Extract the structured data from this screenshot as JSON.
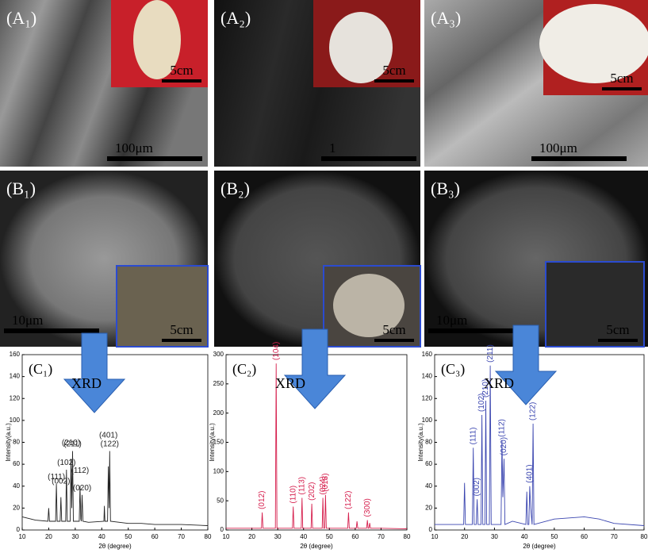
{
  "panels": [
    {
      "label": "(A₁)",
      "inset_scale": "5cm",
      "scale_bar": "100μm"
    },
    {
      "label": "(A₂)",
      "inset_scale": "5cm",
      "scale_bar": "1"
    },
    {
      "label": "(A₃)",
      "inset_scale": "5cm",
      "scale_bar": "100μm"
    },
    {
      "label": "(B₁)",
      "inset_scale": "5cm",
      "scale_bar": "10μm"
    },
    {
      "label": "(B₂)",
      "inset_scale": "5cm"
    },
    {
      "label": "(B₃)",
      "inset_scale": "5cm",
      "scale_bar": "10μm"
    }
  ],
  "chart_data": [
    {
      "type": "line",
      "title": "(C₁)",
      "annotation": "XRD",
      "xlabel": "2θ (degree)",
      "ylabel": "Intensity(a.u.)",
      "color": "#222222",
      "rotated_labels": false,
      "xlim": [
        10,
        80
      ],
      "xticks": [
        10,
        20,
        30,
        40,
        50,
        60,
        70,
        80
      ],
      "ylim": [
        0,
        160
      ],
      "yticks": [
        0,
        20,
        40,
        60,
        80,
        100,
        120,
        140,
        160
      ],
      "x": [
        10,
        15,
        19.7,
        20,
        20.3,
        22.6,
        22.9,
        23.2,
        24.3,
        24.6,
        24.9,
        26.4,
        26.7,
        27.0,
        28.1,
        28.4,
        28.7,
        29.0,
        29.3,
        31.5,
        31.8,
        32.1,
        32.3,
        32.6,
        32.9,
        35,
        40.8,
        41,
        41.2,
        42.2,
        42.5,
        42.8,
        43.0,
        43.3,
        50,
        55,
        60,
        70,
        80
      ],
      "values": [
        12,
        9,
        8,
        20,
        8,
        8,
        42,
        8,
        8,
        30,
        8,
        8,
        55,
        8,
        8,
        65,
        20,
        72,
        8,
        8,
        40,
        10,
        8,
        32,
        8,
        7,
        8,
        22,
        8,
        8,
        58,
        20,
        72,
        8,
        6,
        6,
        5,
        5,
        4
      ],
      "peak_labels": [
        {
          "text": "(111)",
          "x": 22.9
        },
        {
          "text": "(002)",
          "x": 24.6
        },
        {
          "text": "(102)",
          "x": 26.7
        },
        {
          "text": "(210)",
          "x": 28.4
        },
        {
          "text": "(211)",
          "x": 29.0
        },
        {
          "text": "(112)",
          "x": 31.8
        },
        {
          "text": "(020)",
          "x": 32.6
        },
        {
          "text": "(401)",
          "x": 42.5
        },
        {
          "text": "(122)",
          "x": 43.0
        }
      ]
    },
    {
      "type": "line",
      "title": "(C₂)",
      "annotation": "XRD",
      "xlabel": "2θ (degree)",
      "ylabel": "Intensity(a.u.)",
      "color": "#d6204e",
      "rotated_labels": true,
      "xlim": [
        10,
        80
      ],
      "xticks": [
        10,
        20,
        30,
        40,
        50,
        60,
        70,
        80
      ],
      "ylim": [
        0,
        300
      ],
      "yticks": [
        0,
        50,
        100,
        150,
        200,
        250,
        300
      ],
      "x": [
        10,
        20,
        23.7,
        24,
        24.3,
        29.1,
        29.4,
        29.7,
        35.7,
        36,
        36.3,
        39.1,
        39.4,
        39.7,
        42.9,
        43.2,
        43.5,
        47.2,
        47.5,
        47.8,
        48.2,
        48.5,
        48.8,
        57.1,
        57.4,
        57.7,
        60.4,
        60.7,
        61,
        64.4,
        64.7,
        65,
        65.3,
        65.6,
        65.9,
        70,
        80
      ],
      "values": [
        3,
        3,
        3,
        30,
        3,
        3,
        285,
        3,
        3,
        40,
        3,
        3,
        55,
        3,
        3,
        45,
        3,
        3,
        55,
        3,
        3,
        60,
        3,
        3,
        30,
        3,
        3,
        15,
        3,
        3,
        17,
        3,
        3,
        12,
        3,
        3,
        2
      ],
      "peak_labels": [
        {
          "text": "(012)",
          "x": 24
        },
        {
          "text": "(104)",
          "x": 29.4
        },
        {
          "text": "(110)",
          "x": 36
        },
        {
          "text": "(113)",
          "x": 39.4
        },
        {
          "text": "(202)",
          "x": 43.2
        },
        {
          "text": "(024)",
          "x": 47.5
        },
        {
          "text": "(018)",
          "x": 48.5
        },
        {
          "text": "(122)",
          "x": 57.4
        },
        {
          "text": "(300)",
          "x": 64.7
        }
      ]
    },
    {
      "type": "line",
      "title": "(C₃)",
      "annotation": "XRD",
      "xlabel": "2θ (degree)",
      "ylabel": "Intensity(a.u.)",
      "color": "#3b46b0",
      "rotated_labels": true,
      "xlim": [
        10,
        80
      ],
      "xticks": [
        10,
        20,
        30,
        40,
        50,
        60,
        70,
        80
      ],
      "ylim": [
        0,
        160
      ],
      "yticks": [
        0,
        20,
        40,
        60,
        80,
        100,
        120,
        140,
        160
      ],
      "x": [
        10,
        19.7,
        20,
        20.3,
        22.6,
        22.9,
        23.2,
        23.9,
        24.2,
        24.5,
        25.5,
        25.8,
        26.1,
        26.8,
        27.1,
        27.4,
        28.3,
        28.6,
        28.9,
        32.2,
        32.5,
        32.8,
        33.2,
        33.5,
        36,
        40.5,
        40.8,
        41.1,
        41.5,
        41.8,
        42.1,
        42.6,
        42.9,
        43.2,
        50,
        60,
        65,
        70,
        80
      ],
      "values": [
        5,
        5,
        43,
        5,
        5,
        75,
        5,
        5,
        28,
        5,
        5,
        105,
        5,
        5,
        118,
        5,
        5,
        150,
        5,
        5,
        82,
        30,
        65,
        5,
        8,
        5,
        35,
        5,
        5,
        40,
        20,
        5,
        97,
        5,
        10,
        12,
        10,
        6,
        4
      ],
      "peak_labels": [
        {
          "text": "(111)",
          "x": 22.9
        },
        {
          "text": "(002)",
          "x": 24.2
        },
        {
          "text": "(102)",
          "x": 25.8
        },
        {
          "text": "(210)",
          "x": 27.1
        },
        {
          "text": "(211)",
          "x": 28.6
        },
        {
          "text": "(112)",
          "x": 32.5
        },
        {
          "text": "(020)",
          "x": 33.2
        },
        {
          "text": "(401)",
          "x": 41.8
        },
        {
          "text": "(122)",
          "x": 42.9
        }
      ]
    }
  ]
}
